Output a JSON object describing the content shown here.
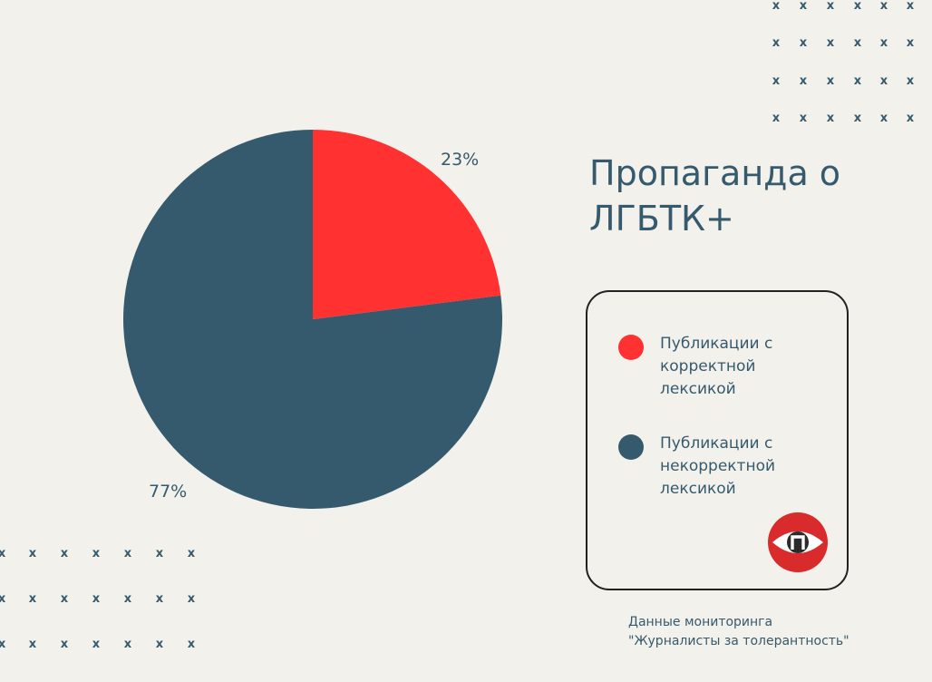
{
  "title": "Пропаганда о ЛГБТК+",
  "chart_data": {
    "type": "pie",
    "slices": [
      {
        "label": "Публикации с корректной лексикой",
        "value": 23,
        "display": "23%",
        "color": "#ff3131"
      },
      {
        "label": "Публикации с некорректной лексикой",
        "value": 77,
        "display": "77%",
        "color": "#365a6d"
      }
    ],
    "legend": "right"
  },
  "legend": {
    "items": [
      {
        "label": "Публикации с\nкорректной\nлексикой",
        "color": "#ff3131"
      },
      {
        "label": "Публикации с\nнекорректной\nлексикой",
        "color": "#365a6d"
      }
    ]
  },
  "source": {
    "line1": "Данные мониторинга",
    "line2": "\"Журналисты за толерантность\""
  },
  "decor": {
    "mark": "x"
  },
  "logo": {
    "icon": "eye-logo-icon",
    "letter": "п",
    "colors": {
      "outer": "#d92b2b",
      "inner": "#ffffff",
      "pupil": "#2b2b2b"
    }
  }
}
